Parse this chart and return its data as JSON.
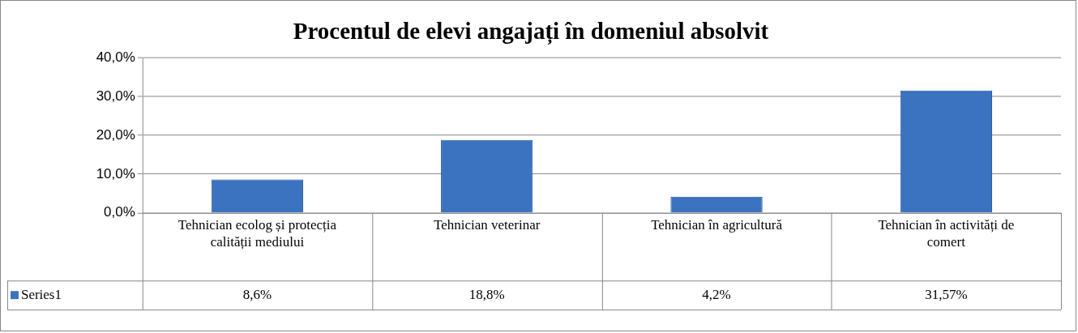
{
  "chart_data": {
    "type": "bar",
    "title": "Procentul de elevi angajați în domeniul absolvit",
    "categories": [
      "Tehnician ecolog și protecția calității mediului",
      "Tehnician veterinar",
      "Tehnician în agricultură",
      "Tehnician în activități de comert"
    ],
    "series": [
      {
        "name": "Series1",
        "color": "#3b73c0",
        "values": [
          8.6,
          18.8,
          4.2,
          31.57
        ],
        "value_labels": [
          "8,6%",
          "18,8%",
          "4,2%",
          "31,57%"
        ]
      }
    ],
    "ylim": [
      0,
      40
    ],
    "yticks": [
      {
        "value": 0,
        "label": "0,0%"
      },
      {
        "value": 10,
        "label": "10,0%"
      },
      {
        "value": 20,
        "label": "20,0%"
      },
      {
        "value": 30,
        "label": "30,0%"
      },
      {
        "value": 40,
        "label": "40,0%"
      }
    ],
    "grid": "y",
    "legend": "bottom"
  }
}
